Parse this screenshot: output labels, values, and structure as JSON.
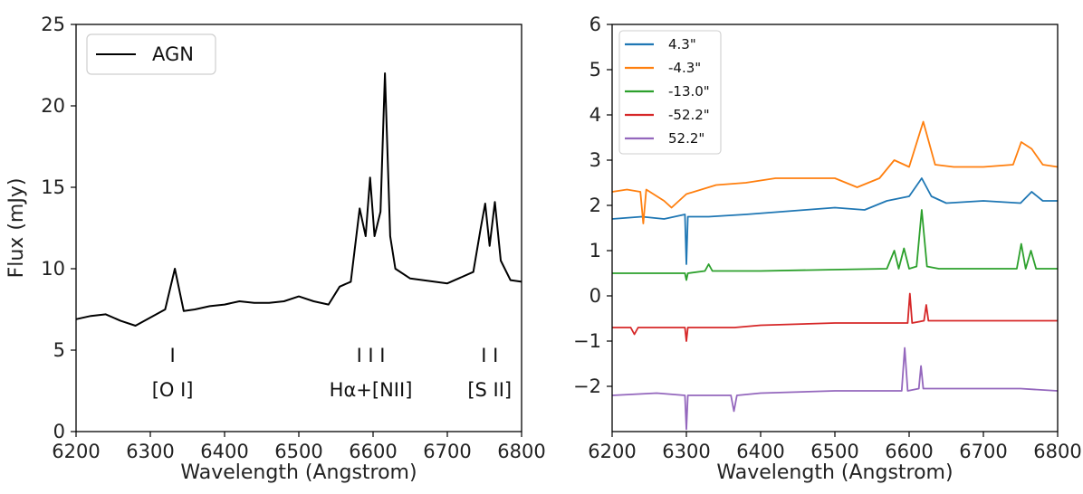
{
  "chart_data": [
    {
      "type": "line",
      "title": "",
      "xlabel": "Wavelength (Angstrom)",
      "ylabel": "Flux (mJy)",
      "xlim": [
        6200,
        6800
      ],
      "ylim": [
        0,
        25
      ],
      "xticks": [
        "6200",
        "6300",
        "6400",
        "6500",
        "6600",
        "6700",
        "6800"
      ],
      "yticks": [
        "0",
        "5",
        "10",
        "15",
        "20",
        "25"
      ],
      "legend": {
        "position": "top-left"
      },
      "series": [
        {
          "name": "AGN",
          "color": "#000000",
          "x": [
            6200,
            6220,
            6240,
            6260,
            6280,
            6300,
            6320,
            6333,
            6345,
            6360,
            6380,
            6400,
            6420,
            6440,
            6460,
            6480,
            6500,
            6520,
            6540,
            6555,
            6570,
            6582,
            6590,
            6596,
            6602,
            6610,
            6616,
            6623,
            6630,
            6650,
            6700,
            6735,
            6745,
            6751,
            6757,
            6764,
            6772,
            6785,
            6800
          ],
          "y": [
            6.9,
            7.1,
            7.2,
            6.8,
            6.5,
            7.0,
            7.5,
            10.0,
            7.4,
            7.5,
            7.7,
            7.8,
            8.0,
            7.9,
            7.9,
            8.0,
            8.3,
            8.0,
            7.8,
            8.9,
            9.2,
            13.7,
            12.0,
            15.6,
            12.0,
            13.5,
            22.0,
            12.0,
            10.0,
            9.4,
            9.1,
            9.8,
            12.5,
            14.0,
            11.4,
            14.1,
            10.5,
            9.3,
            9.2
          ]
        }
      ],
      "annotations": [
        {
          "label": "[O I]",
          "marker": "I",
          "x": 6330
        },
        {
          "label": "Hα+[NII]",
          "marker": "I I  I",
          "x": 6597
        },
        {
          "label": "[S II]",
          "marker": "I I",
          "x": 6757
        }
      ]
    },
    {
      "type": "line",
      "title": "",
      "xlabel": "Wavelength (Angstrom)",
      "ylabel": "",
      "xlim": [
        6200,
        6800
      ],
      "ylim": [
        -3,
        6
      ],
      "xticks": [
        "6200",
        "6300",
        "6400",
        "6500",
        "6600",
        "6700",
        "6800"
      ],
      "yticks": [
        "6",
        "5",
        "4",
        "3",
        "2",
        "1",
        "0",
        "−1",
        "−2"
      ],
      "legend": {
        "position": "top-left"
      },
      "series": [
        {
          "name": "4.3\"",
          "color": "#1f77b4",
          "x": [
            6200,
            6240,
            6270,
            6298,
            6300,
            6302,
            6330,
            6380,
            6420,
            6460,
            6500,
            6540,
            6570,
            6600,
            6617,
            6630,
            6650,
            6700,
            6750,
            6765,
            6780,
            6800
          ],
          "y": [
            1.7,
            1.75,
            1.7,
            1.8,
            0.7,
            1.75,
            1.75,
            1.8,
            1.85,
            1.9,
            1.95,
            1.9,
            2.1,
            2.2,
            2.6,
            2.2,
            2.05,
            2.1,
            2.05,
            2.3,
            2.1,
            2.1
          ]
        },
        {
          "name": "-4.3\"",
          "color": "#ff7f0e",
          "x": [
            6200,
            6220,
            6238,
            6242,
            6246,
            6270,
            6280,
            6300,
            6340,
            6380,
            6420,
            6460,
            6500,
            6530,
            6560,
            6580,
            6600,
            6619,
            6635,
            6660,
            6700,
            6740,
            6751,
            6765,
            6780,
            6800
          ],
          "y": [
            2.3,
            2.35,
            2.3,
            1.6,
            2.35,
            2.1,
            1.95,
            2.25,
            2.45,
            2.5,
            2.6,
            2.6,
            2.6,
            2.4,
            2.6,
            3.0,
            2.85,
            3.85,
            2.9,
            2.85,
            2.85,
            2.9,
            3.4,
            3.25,
            2.9,
            2.85
          ]
        },
        {
          "name": "-13.0\"",
          "color": "#2ca02c",
          "x": [
            6200,
            6250,
            6298,
            6300,
            6302,
            6325,
            6330,
            6335,
            6400,
            6500,
            6570,
            6580,
            6586,
            6593,
            6600,
            6610,
            6617,
            6624,
            6640,
            6700,
            6745,
            6751,
            6757,
            6764,
            6771,
            6800
          ],
          "y": [
            0.5,
            0.5,
            0.5,
            0.35,
            0.5,
            0.55,
            0.7,
            0.55,
            0.55,
            0.58,
            0.6,
            1.0,
            0.6,
            1.05,
            0.6,
            0.65,
            1.9,
            0.65,
            0.6,
            0.6,
            0.6,
            1.15,
            0.6,
            1.0,
            0.6,
            0.6
          ]
        },
        {
          "name": "-52.2\"",
          "color": "#d62728",
          "x": [
            6200,
            6225,
            6230,
            6235,
            6298,
            6300,
            6302,
            6365,
            6400,
            6500,
            6598,
            6601,
            6604,
            6620,
            6623,
            6626,
            6700,
            6800
          ],
          "y": [
            -0.7,
            -0.7,
            -0.85,
            -0.7,
            -0.7,
            -1.0,
            -0.7,
            -0.7,
            -0.65,
            -0.6,
            -0.6,
            0.05,
            -0.6,
            -0.55,
            -0.2,
            -0.55,
            -0.55,
            -0.55
          ]
        },
        {
          "name": "52.2\"",
          "color": "#9467bd",
          "x": [
            6200,
            6260,
            6298,
            6300,
            6302,
            6360,
            6364,
            6368,
            6400,
            6500,
            6590,
            6594,
            6598,
            6613,
            6616,
            6619,
            6700,
            6750,
            6800
          ],
          "y": [
            -2.2,
            -2.15,
            -2.2,
            -2.95,
            -2.2,
            -2.2,
            -2.55,
            -2.2,
            -2.15,
            -2.1,
            -2.1,
            -1.15,
            -2.1,
            -2.05,
            -1.55,
            -2.05,
            -2.05,
            -2.05,
            -2.1
          ]
        }
      ]
    }
  ]
}
